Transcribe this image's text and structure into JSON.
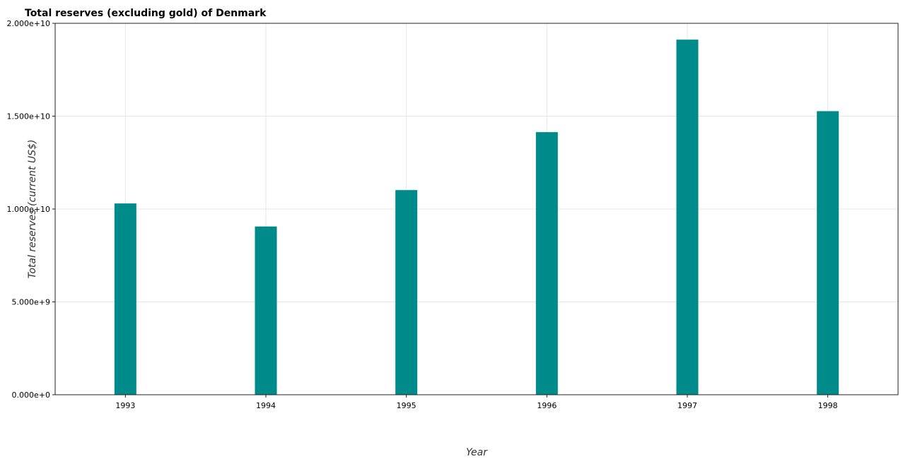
{
  "chart_data": {
    "type": "bar",
    "title": "Total reserves (excluding gold) of Denmark",
    "xlabel": "Year",
    "ylabel": "Total reserves (current US$)",
    "categories": [
      "1993",
      "1994",
      "1995",
      "1996",
      "1997",
      "1998"
    ],
    "values": [
      10300000000,
      9060000000,
      11020000000,
      14140000000,
      19120000000,
      15270000000
    ],
    "ylim": [
      0,
      20000000000
    ],
    "yticks": [
      0,
      5000000000,
      10000000000,
      15000000000,
      20000000000
    ],
    "ytick_labels": [
      "0.000e+0",
      "5.000e+9",
      "1.000e+10",
      "1.500e+10",
      "2.000e+10"
    ],
    "bar_color": "#008b8b",
    "grid": true,
    "legend": "none"
  }
}
